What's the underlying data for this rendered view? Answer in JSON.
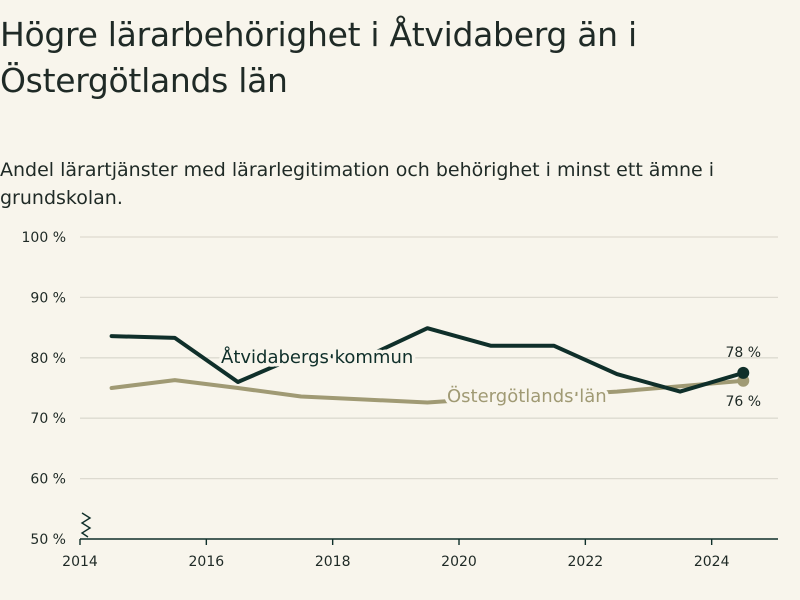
{
  "title": "Högre lärarbehörighet i Åtvidaberg än i Östergötlands län",
  "subtitle": "Andel lärartjänster med lärarlegitimation och behörighet i minst ett ämne i grundskolan.",
  "colors": {
    "atvidaberg": "#0f2f2a",
    "lan": "#a09a74",
    "grid": "#dddad0",
    "background": "#f8f5ec"
  },
  "chart_data": {
    "type": "line",
    "x": [
      2014.5,
      2015.5,
      2016.5,
      2017.5,
      2018.5,
      2019.5,
      2020.5,
      2021.5,
      2022.5,
      2023.5,
      2024.5
    ],
    "series": [
      {
        "name": "Åtvidabergs kommun",
        "values": [
          83.6,
          83.3,
          76.0,
          80.5,
          80.0,
          84.9,
          82.0,
          82.0,
          77.3,
          74.4,
          77.5
        ],
        "end_label": "78 %"
      },
      {
        "name": "Östergötlands län",
        "values": [
          75.0,
          76.3,
          75.0,
          73.6,
          73.1,
          72.6,
          73.3,
          73.8,
          74.4,
          75.3,
          76.2
        ],
        "end_label": "76 %"
      }
    ],
    "x_ticks": [
      {
        "value": 2014,
        "label": "2014"
      },
      {
        "value": 2016,
        "label": "2016"
      },
      {
        "value": 2018,
        "label": "2018"
      },
      {
        "value": 2020,
        "label": "2020"
      },
      {
        "value": 2022,
        "label": "2022"
      },
      {
        "value": 2024,
        "label": "2024"
      }
    ],
    "y_ticks": [
      {
        "value": 50,
        "label": "50 %"
      },
      {
        "value": 60,
        "label": "60 %"
      },
      {
        "value": 70,
        "label": "70 %"
      },
      {
        "value": 80,
        "label": "80 %"
      },
      {
        "value": 90,
        "label": "90 %"
      },
      {
        "value": 100,
        "label": "100 %"
      }
    ],
    "xlim": [
      2014,
      2025.05
    ],
    "ylim": [
      50,
      100
    ],
    "grid": true,
    "y_axis_break": true
  }
}
